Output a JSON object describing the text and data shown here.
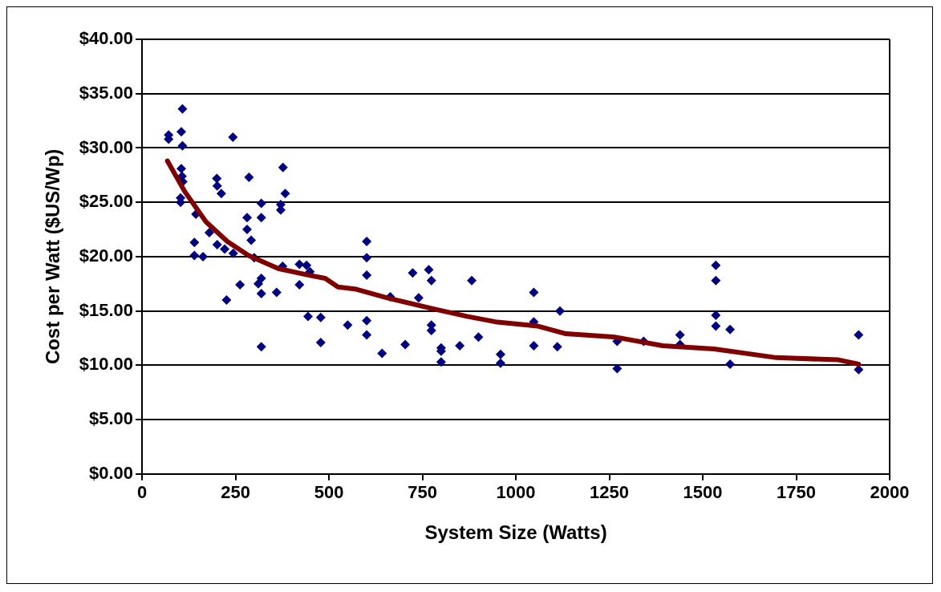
{
  "chart_data": {
    "type": "scatter",
    "xlabel": "System Size (Watts)",
    "ylabel": "Cost per Watt ($US/Wp)",
    "xlim": [
      0,
      2000
    ],
    "xticks": [
      0,
      250,
      500,
      750,
      1000,
      1250,
      1500,
      1750,
      2000
    ],
    "ylim": [
      0,
      40
    ],
    "yticks": [
      {
        "value": 0,
        "label": "$0.00"
      },
      {
        "value": 5,
        "label": "$5.00"
      },
      {
        "value": 10,
        "label": "$10.00"
      },
      {
        "value": 15,
        "label": "$15.00"
      },
      {
        "value": 20,
        "label": "$20.00"
      },
      {
        "value": 25,
        "label": "$25.00"
      },
      {
        "value": 30,
        "label": "$30.00"
      },
      {
        "value": 35,
        "label": "$35.00"
      },
      {
        "value": 40,
        "label": "$40.00"
      }
    ],
    "grid": "y",
    "legend": false,
    "series": [
      {
        "type": "scatter",
        "marker": "diamond",
        "color": "#000080",
        "x": [
          108,
          71,
          71,
          105,
          108,
          243,
          105,
          107,
          109,
          103,
          103,
          200,
          201,
          212,
          286,
          377,
          144,
          180,
          201,
          221,
          140,
          140,
          163,
          244,
          319,
          281,
          319,
          281,
          292,
          300,
          383,
          371,
          371,
          262,
          319,
          311,
          319,
          360,
          226,
          421,
          421,
          440,
          449,
          376,
          319,
          444,
          478,
          478,
          601,
          601,
          601,
          601,
          601,
          550,
          642,
          664,
          704,
          724,
          740,
          767,
          774,
          774,
          774,
          800,
          800,
          800,
          850,
          882,
          900,
          959,
          959,
          1048,
          1048,
          1048,
          1118,
          1111,
          1271,
          1271,
          1342,
          1439,
          1439,
          1535,
          1535,
          1535,
          1535,
          1573,
          1573,
          1917,
          1917
        ],
        "values": [
          33.6,
          31.2,
          30.8,
          31.5,
          30.2,
          31.0,
          28.1,
          27.4,
          26.9,
          25.4,
          25.0,
          27.2,
          26.5,
          25.8,
          27.3,
          28.2,
          23.9,
          22.2,
          21.1,
          20.7,
          21.3,
          20.1,
          20.0,
          20.3,
          24.9,
          23.6,
          23.6,
          22.5,
          21.5,
          19.9,
          25.8,
          24.8,
          24.3,
          17.4,
          18.0,
          17.5,
          16.6,
          16.7,
          16.0,
          17.4,
          19.3,
          19.2,
          18.6,
          19.1,
          11.7,
          14.5,
          14.4,
          12.1,
          21.4,
          19.9,
          18.3,
          14.1,
          12.8,
          13.7,
          11.1,
          16.3,
          11.9,
          18.5,
          16.2,
          18.8,
          17.8,
          13.7,
          13.2,
          11.6,
          11.3,
          10.3,
          11.8,
          17.8,
          12.6,
          11.0,
          10.2,
          16.7,
          14.0,
          11.8,
          15.0,
          11.7,
          12.2,
          9.7,
          12.2,
          12.8,
          11.9,
          19.2,
          17.8,
          14.6,
          13.6,
          13.3,
          10.1,
          12.8,
          9.6
        ]
      },
      {
        "type": "line",
        "marker": "none",
        "color": "#800000",
        "x": [
          68,
          114,
          171,
          228,
          285,
          364,
          444,
          490,
          524,
          573,
          656,
          778,
          869,
          945,
          1059,
          1134,
          1264,
          1393,
          1530,
          1697,
          1863,
          1917
        ],
        "values": [
          28.8,
          26.0,
          23.2,
          21.4,
          20.1,
          18.9,
          18.3,
          18.0,
          17.2,
          17.0,
          16.2,
          15.2,
          14.5,
          14.0,
          13.6,
          12.9,
          12.6,
          11.8,
          11.5,
          10.7,
          10.5,
          10.1
        ]
      }
    ]
  }
}
